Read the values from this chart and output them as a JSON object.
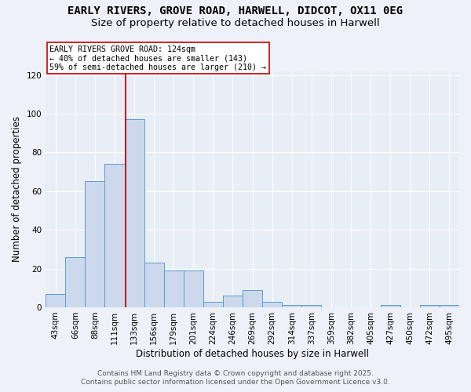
{
  "title": "EARLY RIVERS, GROVE ROAD, HARWELL, DIDCOT, OX11 0EG",
  "subtitle": "Size of property relative to detached houses in Harwell",
  "xlabel": "Distribution of detached houses by size in Harwell",
  "ylabel": "Number of detached properties",
  "categories": [
    "43sqm",
    "66sqm",
    "88sqm",
    "111sqm",
    "133sqm",
    "156sqm",
    "179sqm",
    "201sqm",
    "224sqm",
    "246sqm",
    "269sqm",
    "292sqm",
    "314sqm",
    "337sqm",
    "359sqm",
    "382sqm",
    "405sqm",
    "427sqm",
    "450sqm",
    "472sqm",
    "495sqm"
  ],
  "values": [
    7,
    26,
    65,
    74,
    97,
    23,
    19,
    19,
    3,
    6,
    9,
    3,
    1,
    1,
    0,
    0,
    0,
    1,
    0,
    1,
    1
  ],
  "bar_color": "#ccd9ed",
  "bar_edge_color": "#5b9bd5",
  "property_line_x": 3.55,
  "property_line_color": "#cc0000",
  "ylim": [
    0,
    122
  ],
  "yticks": [
    0,
    20,
    40,
    60,
    80,
    100,
    120
  ],
  "annotation_line1": "EARLY RIVERS GROVE ROAD: 124sqm",
  "annotation_line2": "← 40% of detached houses are smaller (143)",
  "annotation_line3": "59% of semi-detached houses are larger (210) →",
  "footer_line1": "Contains HM Land Registry data © Crown copyright and database right 2025.",
  "footer_line2": "Contains public sector information licensed under the Open Government Licence v3.0.",
  "bg_color": "#eef2f8",
  "plot_bg_color": "#e8eef6",
  "grid_color": "#ffffff",
  "title_fontsize": 10,
  "subtitle_fontsize": 9.5,
  "axis_label_fontsize": 8.5,
  "tick_fontsize": 7.5,
  "footer_fontsize": 6.5
}
